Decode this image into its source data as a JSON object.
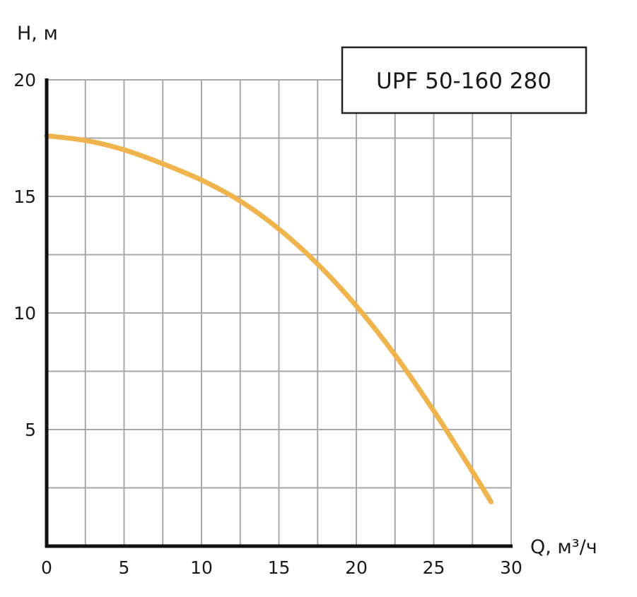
{
  "colors": {
    "curve": "#F0B44C",
    "grid": "#A8A8A8",
    "axis": "#111111",
    "text": "#1a1a1a",
    "legend_border": "#222222"
  },
  "chart_data": {
    "type": "line",
    "title": "",
    "xlabel": "Q, м³/ч",
    "ylabel": "Н, м",
    "xlim": [
      0,
      30
    ],
    "ylim": [
      0,
      20
    ],
    "x_ticks": [
      0,
      5,
      10,
      15,
      20,
      25,
      30
    ],
    "y_ticks": [
      5,
      10,
      15,
      20
    ],
    "x_tick_labels": [
      "0",
      "5",
      "10",
      "15",
      "20",
      "25",
      "30"
    ],
    "y_tick_labels": [
      "5",
      "10",
      "15",
      "20"
    ],
    "x_grid_step": 2.5,
    "y_grid_step": 2.5,
    "grid": true,
    "legend": {
      "placement": "top-right",
      "text": "UPF 50-160 280"
    },
    "series": [
      {
        "name": "UPF 50-160 280",
        "x": [
          0,
          2.5,
          5,
          7.5,
          10,
          12.5,
          15,
          17.5,
          20,
          22.5,
          25,
          27.5,
          28.7
        ],
        "y": [
          17.6,
          17.4,
          17.0,
          16.4,
          15.7,
          14.8,
          13.6,
          12.1,
          10.3,
          8.2,
          5.8,
          3.2,
          1.9
        ]
      }
    ]
  }
}
